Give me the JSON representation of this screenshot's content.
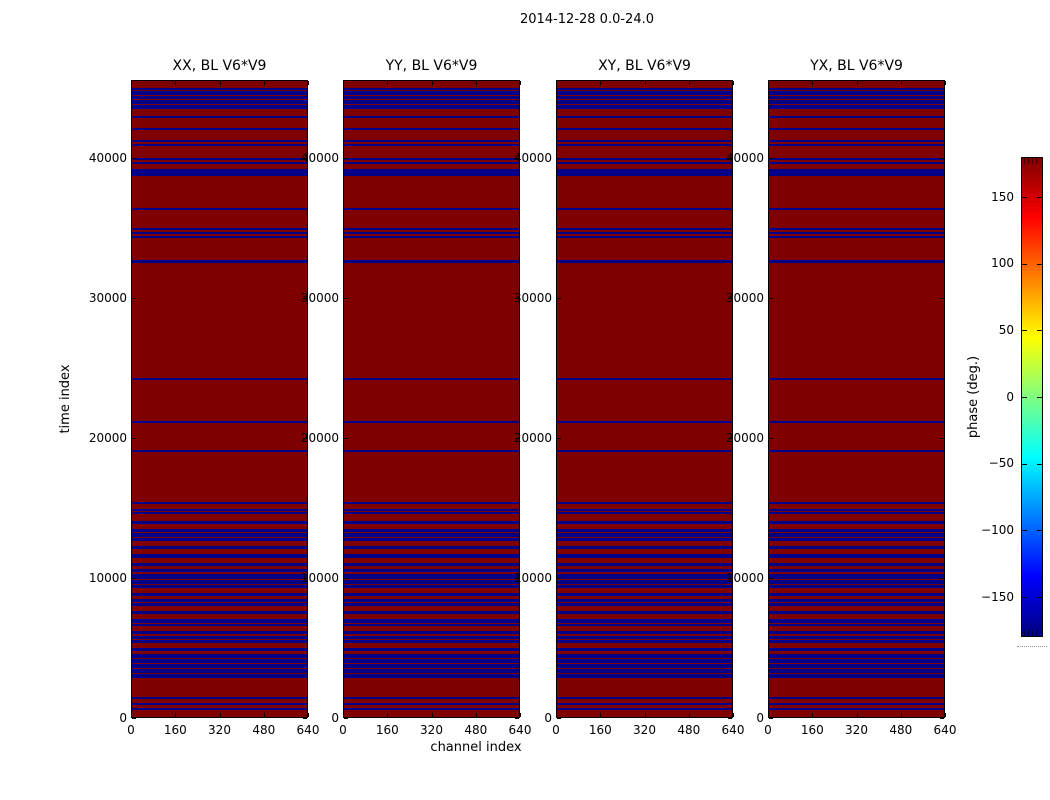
{
  "figure": {
    "title": "2014-12-28 0.0-24.0",
    "xlabel": "channel index",
    "ylabel": "time index",
    "colorbar_label": "phase (deg.)"
  },
  "chart_data": {
    "type": "heatmap",
    "title": "2014-12-28 0.0-24.0",
    "subplots": [
      {
        "title": "XX, BL V6*V9"
      },
      {
        "title": "YY, BL V6*V9"
      },
      {
        "title": "XY, BL V6*V9"
      },
      {
        "title": "YX, BL V6*V9"
      }
    ],
    "xlabel": "channel index",
    "ylabel": "time index",
    "xlim": [
      0,
      640
    ],
    "ylim": [
      0,
      45571
    ],
    "x_ticks": [
      0,
      160,
      320,
      480,
      640
    ],
    "y_ticks": [
      0,
      10000,
      20000,
      30000,
      40000
    ],
    "grid": false,
    "colorbar": {
      "label": "phase (deg.)",
      "ticks": [
        150,
        100,
        50,
        0,
        -50,
        -100,
        -150
      ],
      "vmin": -180,
      "vmax": 180,
      "colormap": "jet",
      "position": "right"
    },
    "value_semantics": {
      "background_phase_deg": 180,
      "stripe_phase_deg": -180,
      "note": "all four subplots show the same horizontal stripe pattern"
    },
    "colors": {
      "phase_high_red": "#7f0000",
      "phase_low_blue": "#000089"
    },
    "blue_stripes_time_index_ranges": [
      [
        44950,
        45100
      ],
      [
        44740,
        44890
      ],
      [
        44560,
        44680
      ],
      [
        44270,
        44500
      ],
      [
        43920,
        44200
      ],
      [
        43550,
        43850
      ],
      [
        42930,
        43070
      ],
      [
        42070,
        42210
      ],
      [
        41210,
        41360
      ],
      [
        40960,
        41100
      ],
      [
        39930,
        40070
      ],
      [
        39640,
        39790
      ],
      [
        38790,
        39290
      ],
      [
        36360,
        36500
      ],
      [
        34930,
        35070
      ],
      [
        34640,
        34790
      ],
      [
        34360,
        34500
      ],
      [
        32570,
        32790
      ],
      [
        24210,
        24360
      ],
      [
        21140,
        21290
      ],
      [
        19070,
        19210
      ],
      [
        15360,
        15500
      ],
      [
        14860,
        15000
      ],
      [
        14640,
        14790
      ],
      [
        13930,
        14140
      ],
      [
        13360,
        13570
      ],
      [
        13000,
        13290
      ],
      [
        12710,
        12930
      ],
      [
        12140,
        12360
      ],
      [
        11500,
        11790
      ],
      [
        10930,
        11140
      ],
      [
        10500,
        10710
      ],
      [
        10000,
        10360
      ],
      [
        9640,
        9930
      ],
      [
        9360,
        9570
      ],
      [
        8790,
        9000
      ],
      [
        8360,
        8570
      ],
      [
        8070,
        8290
      ],
      [
        7500,
        7710
      ],
      [
        6860,
        7140
      ],
      [
        6640,
        6790
      ],
      [
        6070,
        6290
      ],
      [
        5710,
        5930
      ],
      [
        5430,
        5640
      ],
      [
        4860,
        5070
      ],
      [
        4360,
        4640
      ],
      [
        4000,
        4290
      ],
      [
        3640,
        3930
      ],
      [
        3290,
        3570
      ],
      [
        2930,
        3210
      ],
      [
        1430,
        1570
      ],
      [
        990,
        1130
      ],
      [
        640,
        780
      ]
    ]
  }
}
